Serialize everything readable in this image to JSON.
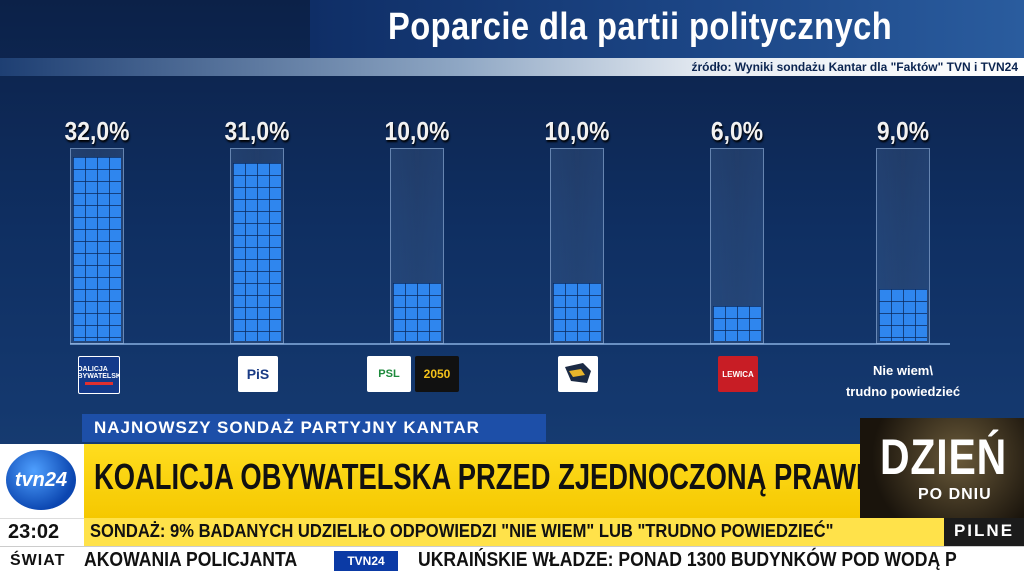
{
  "header": {
    "title": "Poparcie dla partii politycznych",
    "source": "źródło: Wyniki sondażu Kantar dla \"Faktów\" TVN i TVN24"
  },
  "chart_data": {
    "type": "bar",
    "title": "Poparcie dla partii politycznych",
    "categories": [
      "Koalicja Obywatelska",
      "PiS",
      "PSL / Polska 2050",
      "Konfederacja",
      "Lewica",
      "Nie wiem\\ trudno powiedzieć"
    ],
    "values": [
      32.0,
      31.0,
      10.0,
      10.0,
      6.0,
      9.0
    ],
    "value_labels": [
      "32,0%",
      "31,0%",
      "10,0%",
      "10,0%",
      "6,0%",
      "9,0%"
    ],
    "ylim": [
      0,
      33
    ],
    "bar_color": "#2f86ee",
    "logos": [
      {
        "icon": "ko-logo",
        "text": "KOALICJA OBYWATELSKA"
      },
      {
        "icon": "pis-logo",
        "text": "PiS"
      },
      {
        "icon": "psl-logo",
        "text": "PSL"
      },
      {
        "icon": "polska-2050-logo",
        "text": "2050"
      },
      {
        "icon": "konfederacja-logo",
        "text": ""
      },
      {
        "icon": "lewica-logo",
        "text": "LEWICA"
      }
    ],
    "undecided_label_line1": "Nie wiem\\",
    "undecided_label_line2": "trudno powiedzieć"
  },
  "lower_third": {
    "subheading": "NAJNOWSZY SONDAŻ PARTYJNY KANTAR",
    "headline": "KOALICJA OBYWATELSKA PRZED ZJEDNOCZONĄ PRAWICĄ",
    "channel_logo": "tvn24",
    "program_main": "DZIEŃ",
    "program_sub": "PO DNIU",
    "time": "23:02",
    "subline": "SONDAŻ: 9% BADANYCH UDZIELIŁO ODPOWIEDZI \"NIE WIEM\" LUB \"TRUDNO POWIEDZIEĆ\"",
    "urgent_label": "PILNE",
    "accent_color": "#f5c800"
  },
  "ticker": {
    "label": "ŚWIAT",
    "item1": "AKOWANIA POLICJANTA",
    "brand": "TVN24",
    "item2": "UKRAIŃSKIE WŁADZE: PONAD 1300 BUDYNKÓW POD WODĄ P"
  }
}
